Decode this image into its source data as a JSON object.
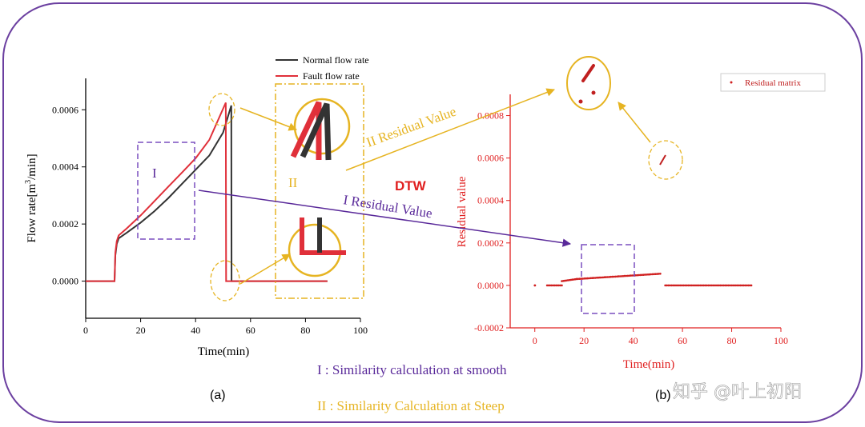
{
  "chart_data": [
    {
      "type": "line",
      "panel": "(a)",
      "xlabel": "Time(min)",
      "ylabel_main": "Flow rate[m",
      "ylabel_sup": "3",
      "ylabel_end": "/min]",
      "xlim": [
        0,
        100
      ],
      "ylim": [
        -0.00013,
        0.00071
      ],
      "xticks": [
        0,
        20,
        40,
        60,
        80,
        100
      ],
      "yticks": [
        {
          "value": 0.0,
          "label": "0.0000"
        },
        {
          "value": 0.0002,
          "label": "0.0002"
        },
        {
          "value": 0.0004,
          "label": "0.0004"
        },
        {
          "value": 0.0006,
          "label": "0.0006"
        }
      ],
      "series": [
        {
          "name": "Normal flow rate",
          "color": "#333333",
          "x": [
            0,
            10.5,
            10.8,
            11.3,
            12,
            15,
            20,
            25,
            30,
            35,
            40,
            45,
            50,
            53,
            53,
            53.1,
            88
          ],
          "y": [
            0,
            0,
            9e-05,
            0.00013,
            0.00015,
            0.00017,
            0.000205,
            0.000245,
            0.00029,
            0.00034,
            0.00039,
            0.00044,
            0.00052,
            0.000615,
            0.000615,
            0,
            0
          ]
        },
        {
          "name": "Fault flow rate",
          "color": "#e0303a",
          "x": [
            0,
            10.5,
            10.8,
            11.3,
            12,
            15,
            20,
            25,
            30,
            35,
            40,
            45,
            51,
            51,
            51.1,
            88
          ],
          "y": [
            0,
            0,
            0.0001,
            0.00014,
            0.00016,
            0.000185,
            0.00023,
            0.00028,
            0.00033,
            0.00038,
            0.00043,
            0.000495,
            0.000625,
            0.000625,
            0,
            0
          ]
        }
      ],
      "legend": [
        "Normal flow rate",
        "Fault flow rate"
      ]
    },
    {
      "type": "scatter",
      "panel": "(b)",
      "xlabel": "Time(min)",
      "ylabel": "Residual value",
      "xlim": [
        -10,
        100
      ],
      "ylim": [
        -0.0002,
        0.0009
      ],
      "xticks": [
        0,
        20,
        40,
        60,
        80,
        100
      ],
      "yticks": [
        {
          "value": -0.0002,
          "label": "-0.0002"
        },
        {
          "value": 0.0,
          "label": "0.0000"
        },
        {
          "value": 0.0002,
          "label": "0.0002"
        },
        {
          "value": 0.0004,
          "label": "0.0004"
        },
        {
          "value": 0.0006,
          "label": "0.0006"
        },
        {
          "value": 0.0008,
          "label": "0.0008"
        }
      ],
      "series": [
        {
          "name": "Residual matrix",
          "color": "#d02020",
          "segments": [
            {
              "x_from": 0,
              "x_to": 0.1,
              "y_from": 0,
              "y_to": 0
            },
            {
              "x_from": 5,
              "x_to": 11,
              "y_from": 0,
              "y_to": 0
            },
            {
              "x_from": 11,
              "x_to": 17,
              "y_from": 2e-05,
              "y_to": 3e-05
            },
            {
              "x_from": 17,
              "x_to": 51,
              "y_from": 3e-05,
              "y_to": 5.5e-05
            },
            {
              "x_from": 53,
              "x_to": 88,
              "y_from": 0,
              "y_to": 0
            }
          ]
        }
      ],
      "legend": [
        "Residual matrix"
      ]
    }
  ],
  "annotations": {
    "box_I_label": "I",
    "box_II_label": "II",
    "residual_II": "II Residual Value",
    "residual_I": "I Residual Value",
    "dtw": "DTW",
    "caption_I": "I : Similarity calculation at smooth",
    "caption_II": "II : Similarity Calculation at Steep",
    "panel_a": "(a)",
    "panel_b": "(b)"
  },
  "watermark": "知乎 @叶上初阳",
  "colors": {
    "frame": "#6b3fa0",
    "normal": "#333333",
    "fault": "#e0303a",
    "residual": "#d02020",
    "highlight_yellow": "#e6b422",
    "purple": "#5a2a9a"
  }
}
